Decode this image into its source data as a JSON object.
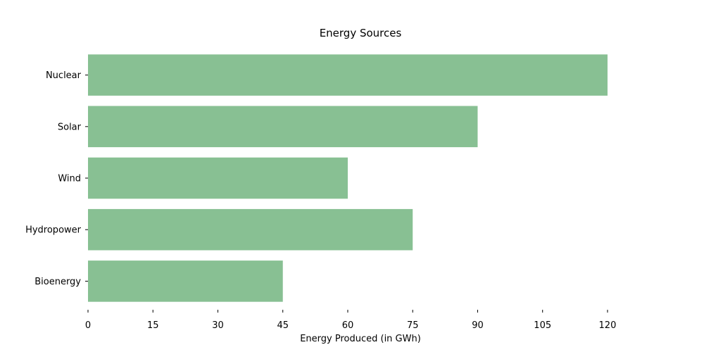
{
  "chart_data": {
    "type": "bar",
    "orientation": "horizontal",
    "title": "Energy Sources",
    "xlabel": "Energy Produced (in GWh)",
    "ylabel": "",
    "categories": [
      "Nuclear",
      "Solar",
      "Wind",
      "Hydropower",
      "Bioenergy"
    ],
    "values": [
      120,
      90,
      60,
      75,
      45
    ],
    "xlim": [
      0,
      143
    ],
    "xticks": [
      0,
      15,
      30,
      45,
      60,
      75,
      90,
      105,
      120
    ],
    "grid": false,
    "bar_color": "#88c093"
  }
}
